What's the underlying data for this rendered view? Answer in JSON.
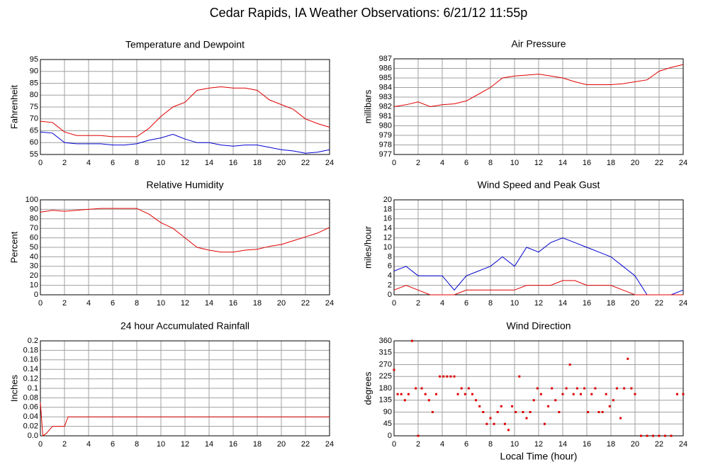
{
  "title": "Cedar Rapids, IA Weather Observations: 6/21/12 11:55p",
  "chart_data": [
    {
      "type": "line",
      "title": "Temperature and Dewpoint",
      "ylabel": "Fahrenheit",
      "x": [
        0,
        1,
        2,
        3,
        4,
        5,
        6,
        7,
        8,
        9,
        10,
        11,
        12,
        13,
        14,
        15,
        16,
        17,
        18,
        19,
        20,
        21,
        22,
        23,
        24
      ],
      "series": [
        {
          "name": "Temperature",
          "color": "#e00000",
          "values": [
            69,
            68.5,
            64.5,
            63,
            63,
            63,
            62.5,
            62.5,
            62.5,
            66,
            71,
            75,
            77,
            82,
            83,
            83.5,
            83,
            83,
            82,
            78,
            76,
            74,
            70,
            68,
            66.5
          ]
        },
        {
          "name": "Dewpoint",
          "color": "#0000d0",
          "values": [
            64.5,
            64,
            60,
            59.5,
            59.5,
            59.5,
            59,
            59,
            59.5,
            61,
            62,
            63.5,
            61.5,
            60,
            60,
            59,
            58.5,
            59,
            59,
            58,
            57,
            56.5,
            55.5,
            56,
            57
          ]
        }
      ],
      "xlim": [
        0,
        24
      ],
      "xticks": [
        0,
        2,
        4,
        6,
        8,
        10,
        12,
        14,
        16,
        18,
        20,
        22,
        24
      ],
      "ylim": [
        55,
        95
      ],
      "yticks": [
        55,
        60,
        65,
        70,
        75,
        80,
        85,
        90,
        95
      ],
      "grid": true
    },
    {
      "type": "line",
      "title": "Air Pressure",
      "ylabel": "millibars",
      "x": [
        0,
        1,
        2,
        3,
        4,
        5,
        6,
        7,
        8,
        9,
        10,
        11,
        12,
        13,
        14,
        15,
        16,
        17,
        18,
        19,
        20,
        21,
        22,
        23,
        24
      ],
      "series": [
        {
          "name": "Pressure",
          "color": "#e00000",
          "values": [
            982,
            982.2,
            982.5,
            982,
            982.2,
            982.3,
            982.6,
            983.3,
            984,
            985,
            985.2,
            985.3,
            985.4,
            985.2,
            985,
            984.6,
            984.3,
            984.3,
            984.3,
            984.4,
            984.6,
            984.8,
            985.7,
            986.1,
            986.4
          ]
        }
      ],
      "xlim": [
        0,
        24
      ],
      "xticks": [
        0,
        2,
        4,
        6,
        8,
        10,
        12,
        14,
        16,
        18,
        20,
        22,
        24
      ],
      "ylim": [
        977,
        987
      ],
      "yticks": [
        977,
        978,
        979,
        980,
        981,
        982,
        983,
        984,
        985,
        986,
        987
      ],
      "grid": true
    },
    {
      "type": "line",
      "title": "Relative Humidity",
      "ylabel": "Percent",
      "x": [
        0,
        1,
        2,
        3,
        4,
        5,
        6,
        7,
        8,
        9,
        10,
        11,
        12,
        13,
        14,
        15,
        16,
        17,
        18,
        19,
        20,
        21,
        22,
        23,
        24
      ],
      "series": [
        {
          "name": "Humidity",
          "color": "#e00000",
          "values": [
            87,
            89,
            88,
            89,
            90,
            91,
            91,
            91,
            91,
            85,
            76,
            70,
            60,
            50,
            47,
            45,
            45,
            47,
            48,
            51,
            53,
            57,
            61,
            65,
            71
          ]
        }
      ],
      "xlim": [
        0,
        24
      ],
      "xticks": [
        0,
        2,
        4,
        6,
        8,
        10,
        12,
        14,
        16,
        18,
        20,
        22,
        24
      ],
      "ylim": [
        0,
        100
      ],
      "yticks": [
        0,
        10,
        20,
        30,
        40,
        50,
        60,
        70,
        80,
        90,
        100
      ],
      "grid": true
    },
    {
      "type": "line",
      "title": "Wind Speed and Peak Gust",
      "ylabel": "miles/hour",
      "x": [
        0,
        1,
        2,
        3,
        4,
        5,
        6,
        7,
        8,
        9,
        10,
        11,
        12,
        13,
        14,
        15,
        16,
        17,
        18,
        19,
        20,
        21,
        22,
        23,
        24
      ],
      "series": [
        {
          "name": "Peak Gust",
          "color": "#0000d0",
          "values": [
            5,
            6,
            4,
            4,
            4,
            1,
            4,
            5,
            6,
            8,
            6,
            10,
            9,
            11,
            12,
            11,
            10,
            9,
            8,
            6,
            4,
            0,
            0,
            0,
            1
          ]
        },
        {
          "name": "Wind Speed",
          "color": "#e00000",
          "values": [
            1,
            2,
            1,
            0,
            0,
            0,
            1,
            1,
            1,
            1,
            1,
            2,
            2,
            2,
            3,
            3,
            2,
            2,
            2,
            1,
            0,
            0,
            0,
            0,
            0
          ]
        }
      ],
      "xlim": [
        0,
        24
      ],
      "xticks": [
        0,
        2,
        4,
        6,
        8,
        10,
        12,
        14,
        16,
        18,
        20,
        22,
        24
      ],
      "ylim": [
        0,
        20
      ],
      "yticks": [
        0,
        2,
        4,
        6,
        8,
        10,
        12,
        14,
        16,
        18,
        20
      ],
      "grid": true
    },
    {
      "type": "line",
      "title": "24 hour Accumulated Rainfall",
      "ylabel": "Inches",
      "x": [
        0,
        0.2,
        0.5,
        1,
        2,
        2.3,
        24
      ],
      "series": [
        {
          "name": "Rainfall",
          "color": "#e00000",
          "values": [
            0.07,
            0,
            0.005,
            0.02,
            0.02,
            0.04,
            0.04
          ]
        }
      ],
      "xlim": [
        0,
        24
      ],
      "xticks": [
        0,
        2,
        4,
        6,
        8,
        10,
        12,
        14,
        16,
        18,
        20,
        22,
        24
      ],
      "ylim": [
        0,
        0.2
      ],
      "yticks": [
        {
          "value": 0,
          "label": "0.0"
        },
        0.02,
        0.04,
        0.06,
        0.08,
        0.1,
        0.12,
        0.14,
        0.16,
        0.18,
        0.2
      ],
      "grid": true
    },
    {
      "type": "scatter",
      "title": "Wind Direction",
      "ylabel": "degrees",
      "xlabel": "Local Time (hour)",
      "x": [
        0,
        0.3,
        0.6,
        0.9,
        1.2,
        1.5,
        1.8,
        2.0,
        2.3,
        2.6,
        2.9,
        3.2,
        3.5,
        3.8,
        4.1,
        4.4,
        4.7,
        5.0,
        5.3,
        5.6,
        5.9,
        6.2,
        6.5,
        6.8,
        7.1,
        7.4,
        7.7,
        8.0,
        8.3,
        8.6,
        8.9,
        9.2,
        9.5,
        9.8,
        10.1,
        10.4,
        10.7,
        11.0,
        11.3,
        11.6,
        11.9,
        12.2,
        12.5,
        12.8,
        13.1,
        13.4,
        13.7,
        14.0,
        14.3,
        14.6,
        14.9,
        15.2,
        15.5,
        15.8,
        16.1,
        16.4,
        16.7,
        17.0,
        17.3,
        17.6,
        17.9,
        18.2,
        18.5,
        18.8,
        19.1,
        19.4,
        19.7,
        20.0,
        20.5,
        21,
        21.5,
        22,
        22.5,
        23,
        23.5,
        24
      ],
      "values": [
        250,
        158,
        158,
        135,
        158,
        360,
        180,
        0,
        180,
        158,
        135,
        90,
        158,
        225,
        225,
        225,
        225,
        225,
        158,
        180,
        158,
        180,
        158,
        135,
        112,
        90,
        45,
        67,
        45,
        90,
        112,
        45,
        22,
        112,
        90,
        225,
        90,
        67,
        90,
        135,
        180,
        158,
        45,
        112,
        180,
        135,
        90,
        158,
        180,
        270,
        158,
        180,
        158,
        180,
        90,
        158,
        180,
        90,
        90,
        158,
        112,
        135,
        180,
        67,
        180,
        292,
        180,
        158,
        0,
        0,
        0,
        0,
        0,
        0,
        158,
        158
      ],
      "color": "#e00000",
      "xlim": [
        0,
        24
      ],
      "xticks": [
        0,
        2,
        4,
        6,
        8,
        10,
        12,
        14,
        16,
        18,
        20,
        22,
        24
      ],
      "ylim": [
        0,
        360
      ],
      "yticks": [
        0,
        45,
        90,
        135,
        180,
        225,
        270,
        315,
        360
      ],
      "grid": true
    }
  ]
}
